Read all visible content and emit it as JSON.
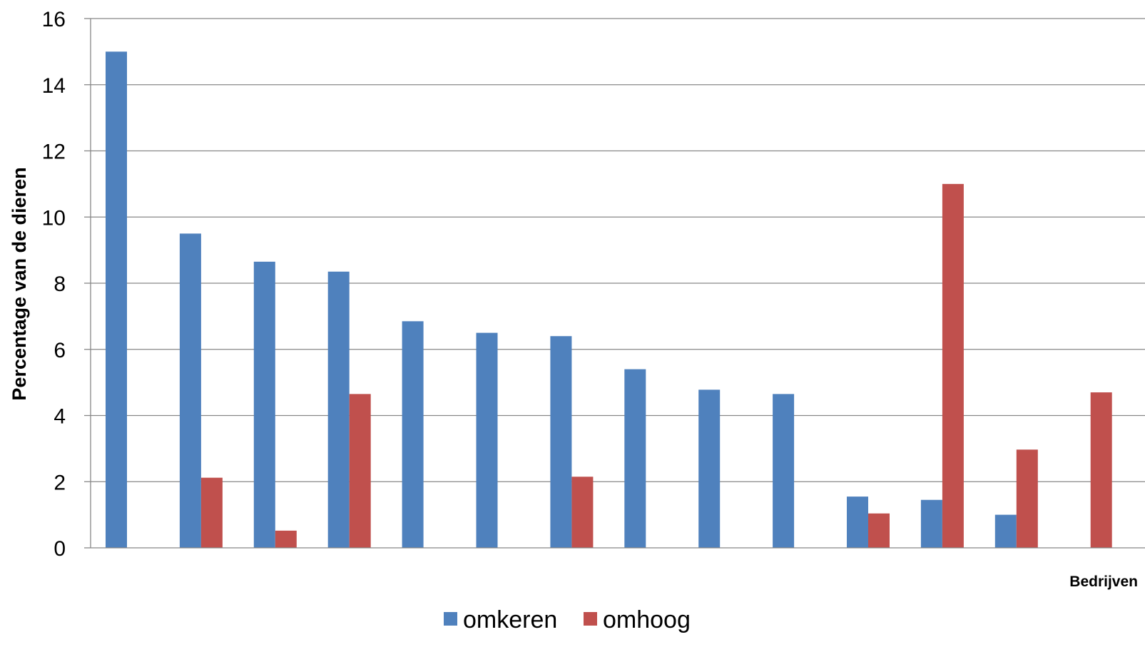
{
  "chart_data": {
    "type": "bar",
    "title": "",
    "xlabel": "Bedrijven",
    "ylabel": "Percentage van de dieren",
    "ylim": [
      0,
      16
    ],
    "yticks": [
      0,
      2,
      4,
      6,
      8,
      10,
      12,
      14,
      16
    ],
    "grid": true,
    "legend_position": "bottom",
    "categories": [
      "",
      "",
      "",
      "",
      "",
      "",
      "",
      "",
      "",
      "",
      "",
      "",
      "",
      ""
    ],
    "series": [
      {
        "name": "omkeren",
        "color": "#4F81BD",
        "values": [
          15.0,
          9.5,
          8.65,
          8.35,
          6.85,
          6.5,
          6.4,
          5.4,
          4.78,
          4.65,
          1.55,
          1.45,
          1.0,
          0
        ]
      },
      {
        "name": "omhoog",
        "color": "#C0504D",
        "values": [
          0,
          2.12,
          0.52,
          4.65,
          0,
          0,
          2.15,
          0,
          0,
          0,
          1.04,
          11.0,
          2.97,
          4.7
        ]
      }
    ]
  }
}
